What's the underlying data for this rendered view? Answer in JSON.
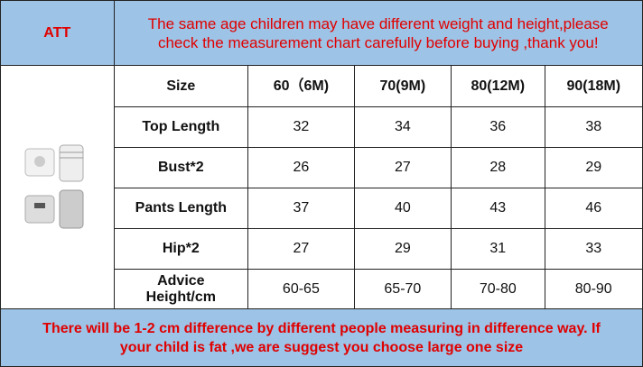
{
  "header": {
    "brand": "ATT",
    "notice": [
      "The same age children may have different weight and height,please",
      "check the measurement chart carefully before buying ,thank you!"
    ]
  },
  "table": {
    "rows": [
      [
        "Size",
        "60（6M)",
        "70(9M)",
        "80(12M)",
        "90(18M)"
      ],
      [
        "Top Length",
        32,
        34,
        36,
        38
      ],
      [
        "Bust*2",
        26,
        27,
        28,
        29
      ],
      [
        "Pants Length",
        37,
        40,
        43,
        46
      ],
      [
        "Hip*2",
        27,
        29,
        31,
        33
      ],
      [
        "Advice Height/cm",
        "60-65",
        "65-70",
        "70-80",
        "80-90"
      ]
    ]
  },
  "footer": {
    "notice": [
      "There will be 1-2 cm difference by different people measuring in difference way. If",
      "your child is fat ,we are suggest you choose large one size"
    ]
  }
}
